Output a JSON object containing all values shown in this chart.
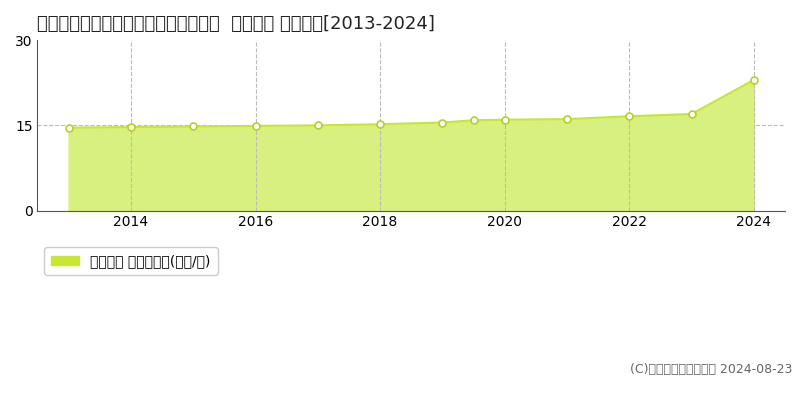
{
  "title": "宮城県名取市飯野坂６丁目３１５番外  地価公示 地価推移[2013-2024]",
  "years": [
    2013,
    2014,
    2015,
    2016,
    2017,
    2018,
    2019,
    2019.5,
    2020,
    2021,
    2022,
    2023,
    2024
  ],
  "values": [
    14.6,
    14.7,
    14.8,
    14.9,
    15.0,
    15.2,
    15.5,
    15.9,
    16.0,
    16.1,
    16.6,
    17.0,
    23.0
  ],
  "line_color": "#c8e632",
  "fill_color": "#d8f080",
  "marker_facecolor": "#ffffff",
  "marker_edgecolor": "#b8d020",
  "grid_color": "#bbbbbb",
  "background_color": "#ffffff",
  "ylim": [
    0,
    30
  ],
  "yticks": [
    0,
    15,
    30
  ],
  "xlim": [
    2012.5,
    2024.5
  ],
  "xticks": [
    2014,
    2016,
    2018,
    2020,
    2022,
    2024
  ],
  "legend_label": "地価公示 平均坪単価(万円/坪)",
  "copyright_text": "(C)土地価格ドットコム 2024-08-23",
  "title_fontsize": 13,
  "tick_fontsize": 10,
  "legend_fontsize": 10,
  "copyright_fontsize": 9
}
